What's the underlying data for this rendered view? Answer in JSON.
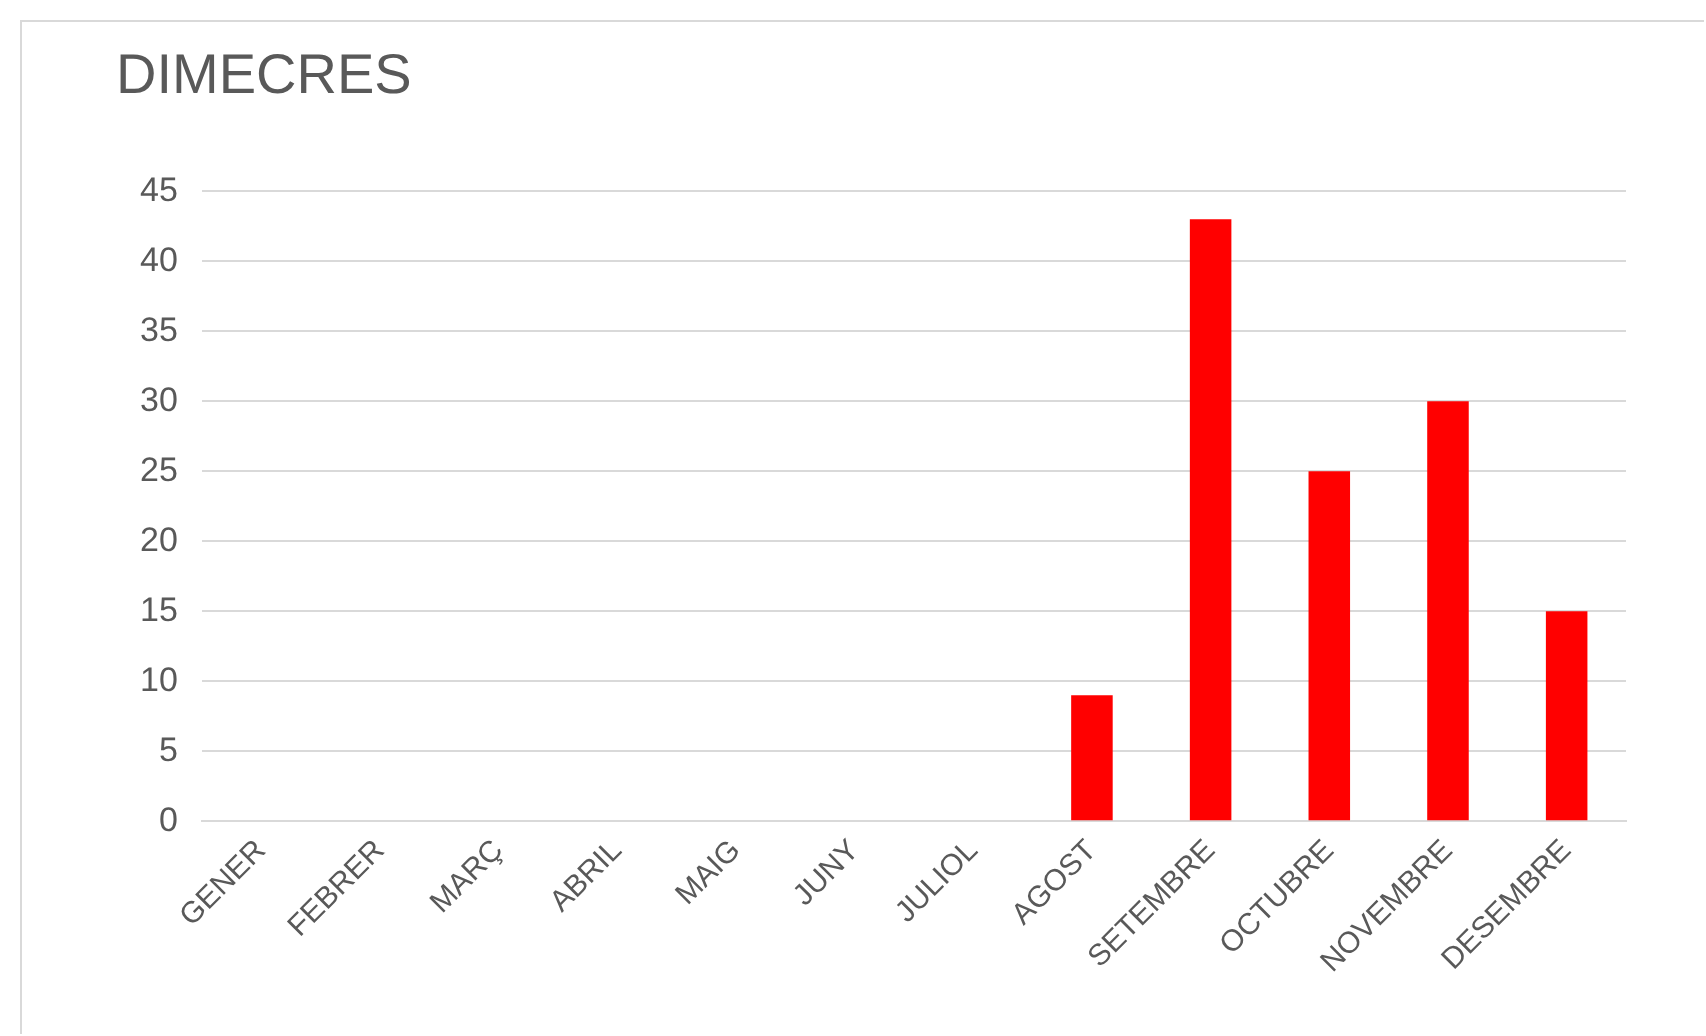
{
  "chart_data": {
    "type": "bar",
    "title": "DIMECRES",
    "categories": [
      "GENER",
      "FEBRER",
      "MARÇ",
      "ABRIL",
      "MAIG",
      "JUNY",
      "JULIOL",
      "AGOST",
      "SETEMBRE",
      "OCTUBRE",
      "NOVEMBRE",
      "DESEMBRE"
    ],
    "values": [
      0,
      0,
      0,
      0,
      0,
      0,
      0,
      9,
      43,
      25,
      30,
      15
    ],
    "color": "#ff0000",
    "ylim": [
      0,
      45
    ],
    "yticks": [
      0,
      5,
      10,
      15,
      20,
      25,
      30,
      35,
      40,
      45
    ],
    "grid": "y",
    "legend": false
  }
}
